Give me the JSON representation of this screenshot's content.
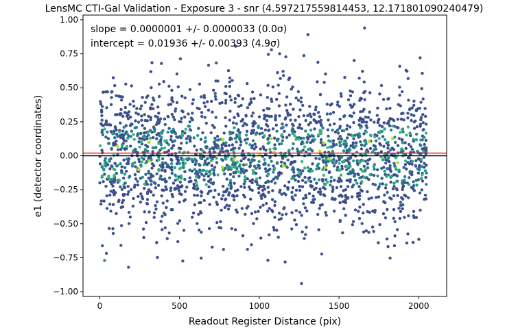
{
  "chart_data": {
    "type": "scatter",
    "title": "LensMC CTI-Gal Validation - Exposure 3 - snr (4.597217559814453, 12.171801090240479)",
    "xlabel": "Readout Register Distance (pix)",
    "ylabel": "e1 (detector coordinates)",
    "xlim": [
      -105,
      2175
    ],
    "ylim": [
      -1.035,
      1.035
    ],
    "xticks": [
      0,
      500,
      1000,
      1500,
      2000
    ],
    "yticks": [
      -1.0,
      -0.75,
      -0.5,
      -0.25,
      0.0,
      0.25,
      0.5,
      0.75,
      1.0
    ],
    "xtick_labels": [
      "0",
      "500",
      "1000",
      "1500",
      "2000"
    ],
    "ytick_labels": [
      "−1.00",
      "−0.75",
      "−0.50",
      "−0.25",
      "0.00",
      "0.25",
      "0.50",
      "0.75",
      "1.00"
    ],
    "annotations": [
      "slope = 0.0000001 +/- 0.0000033 (0.0σ)",
      "intercept = 0.01936 +/- 0.00393 (4.9σ)"
    ],
    "fit_line": {
      "slope": 1e-07,
      "intercept": 0.01936,
      "color": "#d62728"
    },
    "reference_line": {
      "y": 0.0,
      "color": "#000000"
    },
    "x_data_range": [
      0,
      2050
    ],
    "colormap": "viridis",
    "grid": false,
    "outliers": [
      {
        "x": 1660,
        "y": 0.94
      },
      {
        "x": 1265,
        "y": -0.94
      },
      {
        "x": 30,
        "y": -0.77
      },
      {
        "x": 180,
        "y": -0.82
      }
    ]
  }
}
